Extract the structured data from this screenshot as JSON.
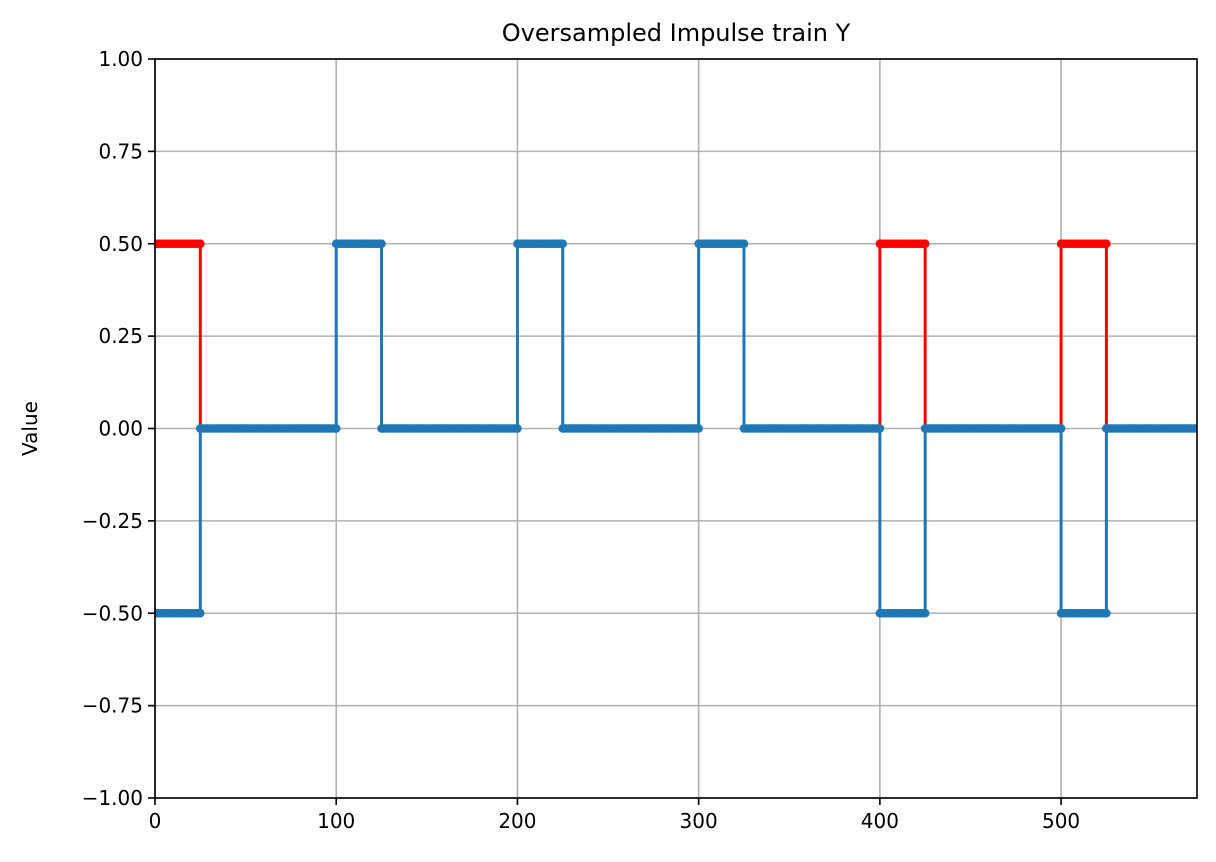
{
  "chart_data": {
    "type": "line",
    "title": "Oversampled Impulse train Y",
    "xlabel": "",
    "ylabel": "Value",
    "xlim": [
      0,
      575
    ],
    "ylim": [
      -1.0,
      1.0
    ],
    "grid": true,
    "x_ticks": [
      0,
      100,
      200,
      300,
      400,
      500
    ],
    "x_tick_labels": [
      "0",
      "100",
      "200",
      "300",
      "400",
      "500"
    ],
    "y_ticks": [
      1.0,
      0.75,
      0.5,
      0.25,
      0.0,
      -0.25,
      -0.5,
      -0.75,
      -1.0
    ],
    "y_tick_labels": [
      "1.00",
      "0.75",
      "0.50",
      "0.25",
      "0.00",
      "−0.25",
      "−0.50",
      "−0.75",
      "−1.00"
    ],
    "marker": "circle",
    "series": [
      {
        "color": "#ff0000",
        "style": "line-with-markers",
        "segments": [
          {
            "x": [
              0,
              25,
              25
            ],
            "y": [
              0.5,
              0.5,
              0.0
            ]
          },
          {
            "x": [
              400,
              400,
              425,
              425
            ],
            "y": [
              0.0,
              0.5,
              0.5,
              0.0
            ]
          },
          {
            "x": [
              500,
              500,
              525,
              525
            ],
            "y": [
              0.0,
              0.5,
              0.5,
              0.0
            ]
          }
        ]
      },
      {
        "color": "#1f77b4",
        "style": "line-with-markers",
        "segments": [
          {
            "x": [
              0,
              25,
              25,
              100,
              100,
              125,
              125,
              200,
              200,
              225,
              225,
              300,
              300,
              325,
              325,
              400,
              400,
              425,
              425,
              500,
              500,
              525,
              525,
              575
            ],
            "y": [
              -0.5,
              -0.5,
              0.0,
              0.0,
              0.5,
              0.5,
              0.0,
              0.0,
              0.5,
              0.5,
              0.0,
              0.0,
              0.5,
              0.5,
              0.0,
              0.0,
              -0.5,
              -0.5,
              0.0,
              0.0,
              -0.5,
              -0.5,
              0.0,
              0.0
            ]
          }
        ]
      }
    ]
  }
}
